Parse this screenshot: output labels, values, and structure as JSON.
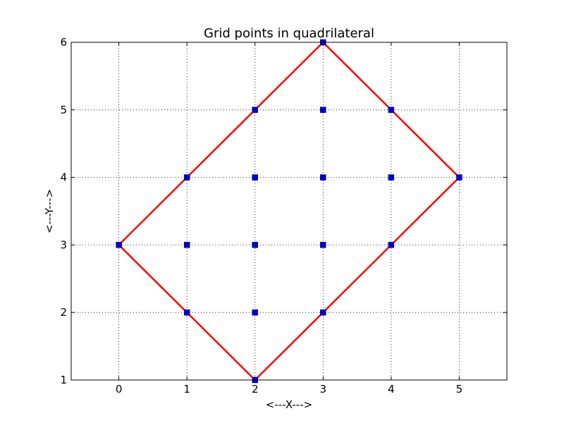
{
  "chart_data": {
    "type": "scatter",
    "title": "Grid points in quadrilateral",
    "xlabel": "<---X--->",
    "ylabel": "<---Y--->",
    "xlim": [
      -0.7,
      5.7
    ],
    "ylim": [
      1,
      6
    ],
    "xticks": [
      "0",
      "1",
      "2",
      "3",
      "4",
      "5"
    ],
    "yticks": [
      "1",
      "2",
      "3",
      "4",
      "5",
      "6"
    ],
    "grid": true,
    "grid_style": "dotted",
    "series": [
      {
        "type": "line",
        "color": "#ff0000",
        "x": [
          0,
          2,
          5,
          3,
          0
        ],
        "y": [
          3,
          1,
          4,
          6,
          3
        ]
      },
      {
        "type": "scatter",
        "marker": "square",
        "color": "#0000cc",
        "points": [
          [
            2,
            1
          ],
          [
            1,
            2
          ],
          [
            2,
            2
          ],
          [
            3,
            2
          ],
          [
            0,
            3
          ],
          [
            1,
            3
          ],
          [
            2,
            3
          ],
          [
            3,
            3
          ],
          [
            4,
            3
          ],
          [
            1,
            4
          ],
          [
            2,
            4
          ],
          [
            3,
            4
          ],
          [
            4,
            4
          ],
          [
            5,
            4
          ],
          [
            2,
            5
          ],
          [
            3,
            5
          ],
          [
            4,
            5
          ],
          [
            3,
            6
          ]
        ]
      }
    ]
  }
}
